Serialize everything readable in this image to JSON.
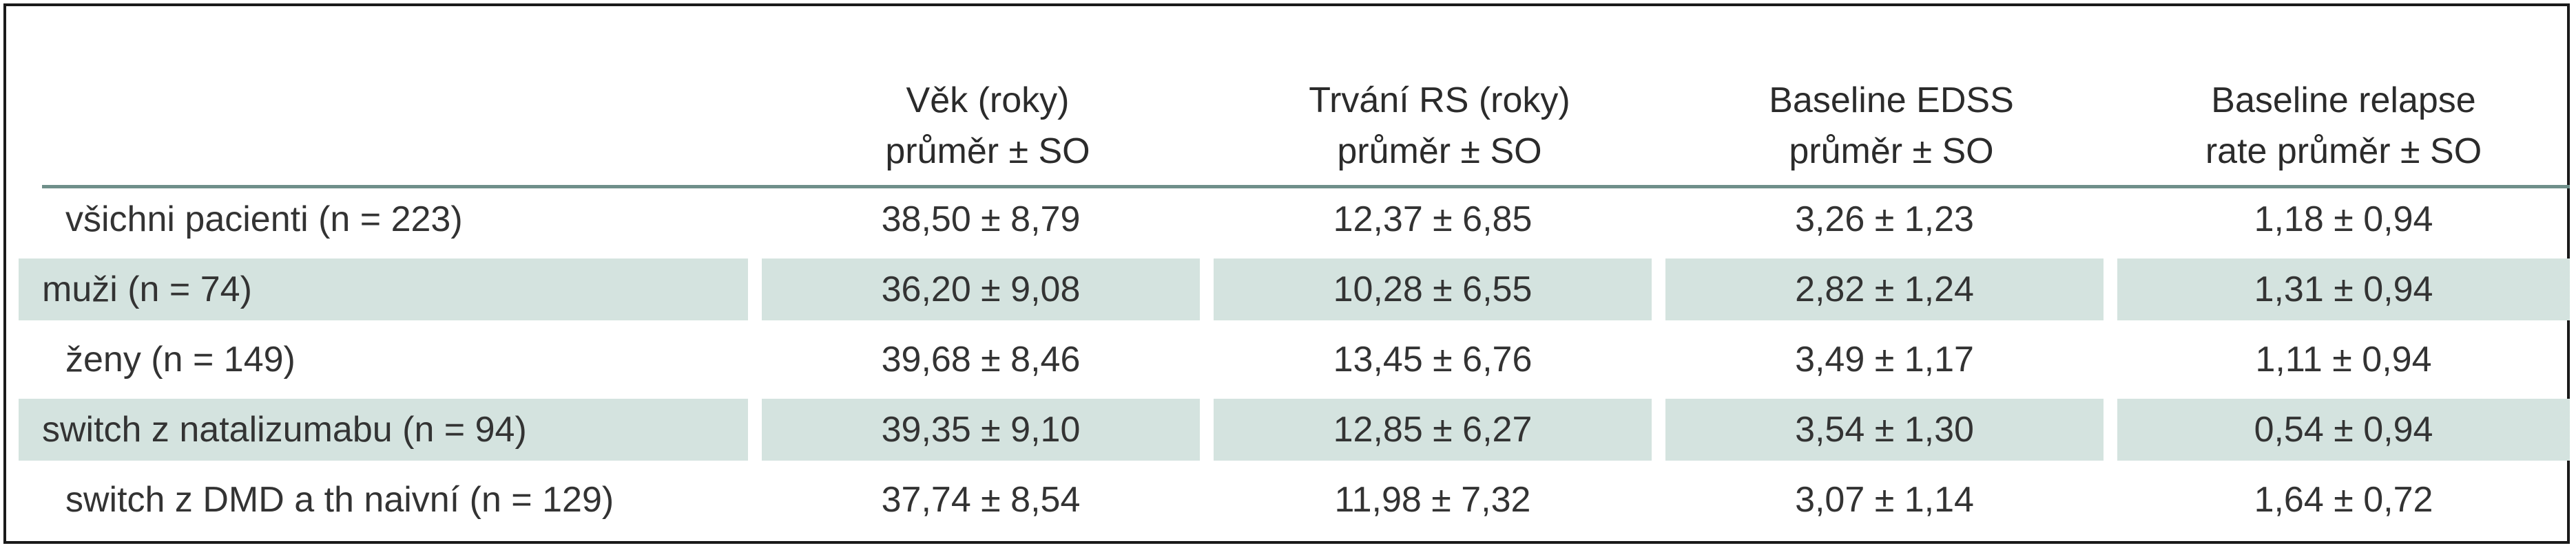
{
  "table": {
    "headers": [
      {
        "line1": "",
        "line2": ""
      },
      {
        "line1": "Věk (roky)",
        "line2": "průměr ± SO"
      },
      {
        "line1": "Trvání RS (roky)",
        "line2": "průměr ± SO"
      },
      {
        "line1": "Baseline EDSS",
        "line2": "průměr ± SO"
      },
      {
        "line1": "Baseline relapse",
        "line2": "rate průměr ± SO"
      }
    ],
    "rows": [
      {
        "label": "všichni pacienti (n = 223)",
        "vek": "38,50 ± 8,79",
        "trvani": "12,37 ± 6,85",
        "edss": "3,26 ± 1,23",
        "relapse": "1,18 ± 0,94"
      },
      {
        "label": "muži (n = 74)",
        "vek": "36,20 ± 9,08",
        "trvani": "10,28 ± 6,55",
        "edss": "2,82 ± 1,24",
        "relapse": "1,31 ± 0,94"
      },
      {
        "label": "ženy (n = 149)",
        "vek": "39,68 ± 8,46",
        "trvani": "13,45 ± 6,76",
        "edss": "3,49 ± 1,17",
        "relapse": "1,11 ± 0,94"
      },
      {
        "label": "switch z natalizumabu (n = 94)",
        "vek": "39,35 ± 9,10",
        "trvani": "12,85 ± 6,27",
        "edss": "3,54 ± 1,30",
        "relapse": "0,54 ± 0,94"
      },
      {
        "label": "switch z DMD a th naivní (n = 129)",
        "vek": "37,74 ± 8,54",
        "trvani": "11,98 ± 7,32",
        "edss": "3,07 ± 1,14",
        "relapse": "1,64 ± 0,72"
      }
    ]
  },
  "colors": {
    "row_shade": "#d4e3df",
    "header_rule": "#6f8f8a",
    "frame": "#1a1a1a"
  }
}
